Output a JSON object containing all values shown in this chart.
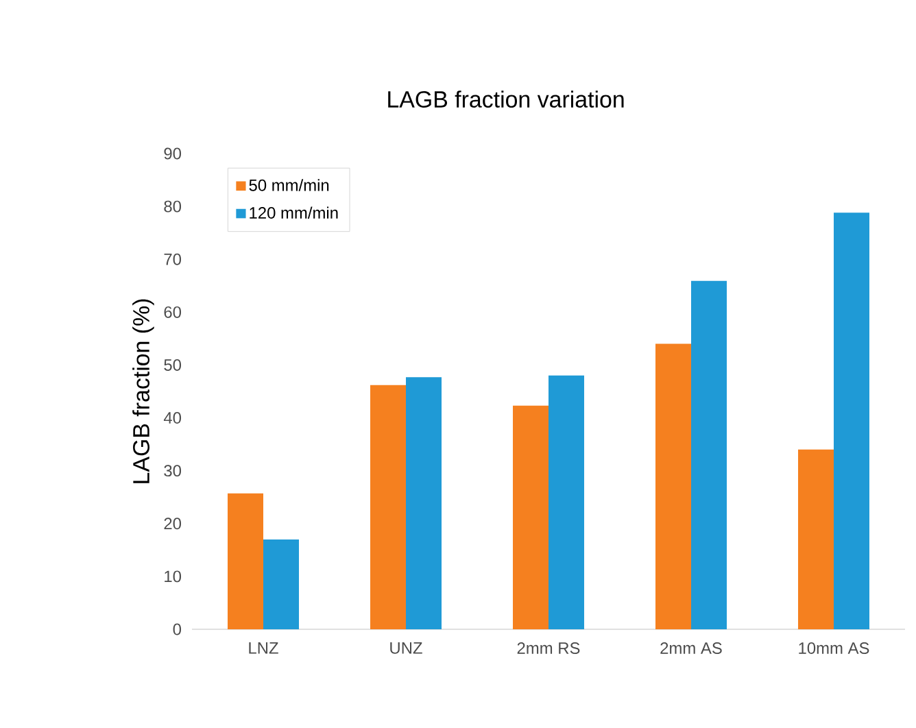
{
  "chart_data": {
    "type": "bar",
    "title": "LAGB fraction variation",
    "ylabel": "LAGB fraction (%)",
    "categories": [
      "LNZ",
      "UNZ",
      "2mm RS",
      "2mm AS",
      "10mm AS"
    ],
    "series": [
      {
        "name": "50 mm/min",
        "color": "#f5801f",
        "values": [
          25.7,
          46.2,
          42.3,
          54,
          34
        ]
      },
      {
        "name": "120 mm/min",
        "color": "#1f9ad6",
        "values": [
          17,
          47.7,
          48,
          65.9,
          78.8
        ]
      }
    ],
    "ylim": [
      0,
      90
    ],
    "yticks": [
      0,
      10,
      20,
      30,
      40,
      50,
      60,
      70,
      80,
      90
    ],
    "grid": false,
    "legend": "top left"
  }
}
